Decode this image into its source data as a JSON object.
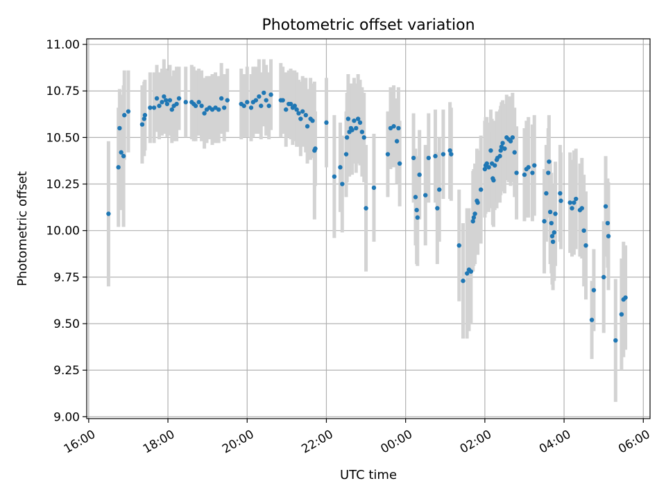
{
  "chart_data": {
    "type": "scatter",
    "title": "Photometric offset variation",
    "xlabel": "UTC time",
    "ylabel": "Photometric offset",
    "xlim_hours": [
      15.95,
      30.17
    ],
    "ylim": [
      8.99,
      11.03
    ],
    "x_ticks": [
      {
        "h": 16,
        "label": "16:00"
      },
      {
        "h": 18,
        "label": "18:00"
      },
      {
        "h": 20,
        "label": "20:00"
      },
      {
        "h": 22,
        "label": "22:00"
      },
      {
        "h": 24,
        "label": "00:00"
      },
      {
        "h": 26,
        "label": "02:00"
      },
      {
        "h": 28,
        "label": "04:00"
      },
      {
        "h": 30,
        "label": "06:00"
      }
    ],
    "y_ticks": [
      {
        "v": 9.0,
        "label": "9.00"
      },
      {
        "v": 9.25,
        "label": "9.25"
      },
      {
        "v": 9.5,
        "label": "9.50"
      },
      {
        "v": 9.75,
        "label": "9.75"
      },
      {
        "v": 10.0,
        "label": "10.00"
      },
      {
        "v": 10.25,
        "label": "10.25"
      },
      {
        "v": 10.5,
        "label": "10.50"
      },
      {
        "v": 10.75,
        "label": "10.75"
      },
      {
        "v": 11.0,
        "label": "11.00"
      }
    ],
    "grid": true,
    "colors": {
      "points": "#1f77b4",
      "errorbars": "#d3d3d3"
    },
    "points": [
      [
        16.5,
        10.09,
        0.39
      ],
      [
        16.75,
        10.34,
        0.32
      ],
      [
        16.78,
        10.55,
        0.21
      ],
      [
        16.82,
        10.42,
        0.31
      ],
      [
        16.88,
        10.4,
        0.38
      ],
      [
        16.9,
        10.62,
        0.24
      ],
      [
        17.0,
        10.64,
        0.22
      ],
      [
        17.35,
        10.57,
        0.21
      ],
      [
        17.4,
        10.6,
        0.2
      ],
      [
        17.42,
        10.62,
        0.19
      ],
      [
        17.55,
        10.66,
        0.19
      ],
      [
        17.65,
        10.66,
        0.19
      ],
      [
        17.72,
        10.71,
        0.18
      ],
      [
        17.78,
        10.67,
        0.18
      ],
      [
        17.85,
        10.69,
        0.18
      ],
      [
        17.9,
        10.72,
        0.2
      ],
      [
        17.95,
        10.7,
        0.17
      ],
      [
        17.98,
        10.68,
        0.18
      ],
      [
        18.05,
        10.7,
        0.19
      ],
      [
        18.1,
        10.65,
        0.18
      ],
      [
        18.15,
        10.67,
        0.19
      ],
      [
        18.22,
        10.68,
        0.2
      ],
      [
        18.28,
        10.71,
        0.17
      ],
      [
        18.45,
        10.69,
        0.19
      ],
      [
        18.6,
        10.69,
        0.2
      ],
      [
        18.65,
        10.68,
        0.2
      ],
      [
        18.7,
        10.67,
        0.19
      ],
      [
        18.78,
        10.69,
        0.18
      ],
      [
        18.85,
        10.67,
        0.19
      ],
      [
        18.92,
        10.63,
        0.19
      ],
      [
        18.98,
        10.65,
        0.18
      ],
      [
        19.05,
        10.66,
        0.17
      ],
      [
        19.12,
        10.65,
        0.19
      ],
      [
        19.2,
        10.66,
        0.19
      ],
      [
        19.28,
        10.65,
        0.18
      ],
      [
        19.35,
        10.71,
        0.19
      ],
      [
        19.42,
        10.66,
        0.18
      ],
      [
        19.5,
        10.7,
        0.17
      ],
      [
        19.85,
        10.68,
        0.19
      ],
      [
        19.92,
        10.67,
        0.17
      ],
      [
        20.0,
        10.69,
        0.19
      ],
      [
        20.1,
        10.66,
        0.18
      ],
      [
        20.15,
        10.69,
        0.19
      ],
      [
        20.22,
        10.7,
        0.18
      ],
      [
        20.3,
        10.72,
        0.2
      ],
      [
        20.35,
        10.67,
        0.18
      ],
      [
        20.42,
        10.74,
        0.18
      ],
      [
        20.48,
        10.7,
        0.19
      ],
      [
        20.55,
        10.67,
        0.18
      ],
      [
        20.6,
        10.73,
        0.19
      ],
      [
        20.85,
        10.7,
        0.2
      ],
      [
        20.9,
        10.7,
        0.18
      ],
      [
        20.98,
        10.65,
        0.2
      ],
      [
        21.05,
        10.68,
        0.18
      ],
      [
        21.1,
        10.68,
        0.19
      ],
      [
        21.15,
        10.66,
        0.2
      ],
      [
        21.2,
        10.67,
        0.19
      ],
      [
        21.25,
        10.65,
        0.2
      ],
      [
        21.3,
        10.63,
        0.18
      ],
      [
        21.35,
        10.6,
        0.2
      ],
      [
        21.4,
        10.64,
        0.19
      ],
      [
        21.48,
        10.62,
        0.2
      ],
      [
        21.52,
        10.56,
        0.2
      ],
      [
        21.6,
        10.6,
        0.22
      ],
      [
        21.65,
        10.59,
        0.2
      ],
      [
        21.7,
        10.43,
        0.37
      ],
      [
        21.72,
        10.44,
        0.2
      ],
      [
        22.0,
        10.58,
        0.24
      ],
      [
        22.2,
        10.29,
        0.33
      ],
      [
        22.35,
        10.34,
        0.24
      ],
      [
        22.4,
        10.25,
        0.26
      ],
      [
        22.5,
        10.41,
        0.23
      ],
      [
        22.52,
        10.5,
        0.24
      ],
      [
        22.55,
        10.6,
        0.24
      ],
      [
        22.58,
        10.53,
        0.24
      ],
      [
        22.62,
        10.55,
        0.24
      ],
      [
        22.65,
        10.54,
        0.24
      ],
      [
        22.7,
        10.59,
        0.23
      ],
      [
        22.75,
        10.55,
        0.24
      ],
      [
        22.8,
        10.6,
        0.24
      ],
      [
        22.85,
        10.58,
        0.23
      ],
      [
        22.9,
        10.53,
        0.24
      ],
      [
        22.95,
        10.5,
        0.24
      ],
      [
        23.0,
        10.12,
        0.34
      ],
      [
        23.2,
        10.23,
        0.29
      ],
      [
        23.55,
        10.41,
        0.23
      ],
      [
        23.62,
        10.55,
        0.22
      ],
      [
        23.7,
        10.56,
        0.22
      ],
      [
        23.78,
        10.48,
        0.23
      ],
      [
        23.82,
        10.55,
        0.22
      ],
      [
        23.85,
        10.36,
        0.23
      ],
      [
        24.2,
        10.39,
        0.24
      ],
      [
        24.25,
        10.18,
        0.26
      ],
      [
        24.28,
        10.11,
        0.29
      ],
      [
        24.3,
        10.07,
        0.26
      ],
      [
        24.35,
        10.3,
        0.24
      ],
      [
        24.5,
        10.19,
        0.27
      ],
      [
        24.58,
        10.39,
        0.24
      ],
      [
        24.75,
        10.4,
        0.25
      ],
      [
        24.8,
        10.12,
        0.3
      ],
      [
        24.85,
        10.22,
        0.28
      ],
      [
        24.95,
        10.41,
        0.24
      ],
      [
        25.12,
        10.43,
        0.26
      ],
      [
        25.15,
        10.41,
        0.25
      ],
      [
        25.35,
        9.92,
        0.3
      ],
      [
        25.45,
        9.73,
        0.31
      ],
      [
        25.55,
        9.77,
        0.35
      ],
      [
        25.6,
        9.79,
        0.33
      ],
      [
        25.65,
        9.78,
        0.28
      ],
      [
        25.7,
        10.05,
        0.27
      ],
      [
        25.72,
        10.07,
        0.26
      ],
      [
        25.75,
        10.09,
        0.27
      ],
      [
        25.8,
        10.16,
        0.28
      ],
      [
        25.82,
        10.15,
        0.28
      ],
      [
        25.9,
        10.22,
        0.29
      ],
      [
        26.0,
        10.33,
        0.26
      ],
      [
        26.02,
        10.35,
        0.26
      ],
      [
        26.05,
        10.36,
        0.25
      ],
      [
        26.1,
        10.34,
        0.24
      ],
      [
        26.15,
        10.43,
        0.22
      ],
      [
        26.18,
        10.36,
        0.24
      ],
      [
        26.2,
        10.28,
        0.25
      ],
      [
        26.22,
        10.27,
        0.25
      ],
      [
        26.25,
        10.35,
        0.24
      ],
      [
        26.3,
        10.38,
        0.26
      ],
      [
        26.32,
        10.39,
        0.24
      ],
      [
        26.38,
        10.4,
        0.25
      ],
      [
        26.4,
        10.43,
        0.24
      ],
      [
        26.42,
        10.45,
        0.24
      ],
      [
        26.45,
        10.47,
        0.23
      ],
      [
        26.5,
        10.44,
        0.24
      ],
      [
        26.55,
        10.5,
        0.23
      ],
      [
        26.6,
        10.49,
        0.23
      ],
      [
        26.65,
        10.48,
        0.24
      ],
      [
        26.7,
        10.5,
        0.24
      ],
      [
        26.75,
        10.42,
        0.24
      ],
      [
        26.8,
        10.31,
        0.25
      ],
      [
        27.0,
        10.3,
        0.25
      ],
      [
        27.05,
        10.33,
        0.26
      ],
      [
        27.1,
        10.34,
        0.27
      ],
      [
        27.2,
        10.31,
        0.26
      ],
      [
        27.25,
        10.35,
        0.27
      ],
      [
        27.5,
        10.05,
        0.28
      ],
      [
        27.55,
        10.2,
        0.26
      ],
      [
        27.6,
        10.31,
        0.24
      ],
      [
        27.62,
        10.37,
        0.25
      ],
      [
        27.65,
        10.1,
        0.28
      ],
      [
        27.68,
        10.04,
        0.27
      ],
      [
        27.7,
        9.97,
        0.26
      ],
      [
        27.72,
        9.94,
        0.26
      ],
      [
        27.75,
        9.99,
        0.26
      ],
      [
        27.78,
        10.09,
        0.28
      ],
      [
        27.9,
        10.2,
        0.26
      ],
      [
        27.92,
        10.16,
        0.26
      ],
      [
        28.15,
        10.15,
        0.27
      ],
      [
        28.2,
        10.12,
        0.26
      ],
      [
        28.25,
        10.15,
        0.28
      ],
      [
        28.3,
        10.17,
        0.27
      ],
      [
        28.4,
        10.11,
        0.25
      ],
      [
        28.45,
        10.12,
        0.27
      ],
      [
        28.5,
        10.0,
        0.3
      ],
      [
        28.55,
        9.92,
        0.29
      ],
      [
        28.7,
        9.52,
        0.21
      ],
      [
        28.75,
        9.68,
        0.22
      ],
      [
        29.0,
        9.75,
        0.3
      ],
      [
        29.05,
        10.13,
        0.27
      ],
      [
        29.1,
        10.04,
        0.24
      ],
      [
        29.12,
        9.97,
        0.29
      ],
      [
        29.3,
        9.41,
        0.33
      ],
      [
        29.45,
        9.55,
        0.3
      ],
      [
        29.5,
        9.63,
        0.31
      ],
      [
        29.55,
        9.64,
        0.28
      ]
    ]
  }
}
